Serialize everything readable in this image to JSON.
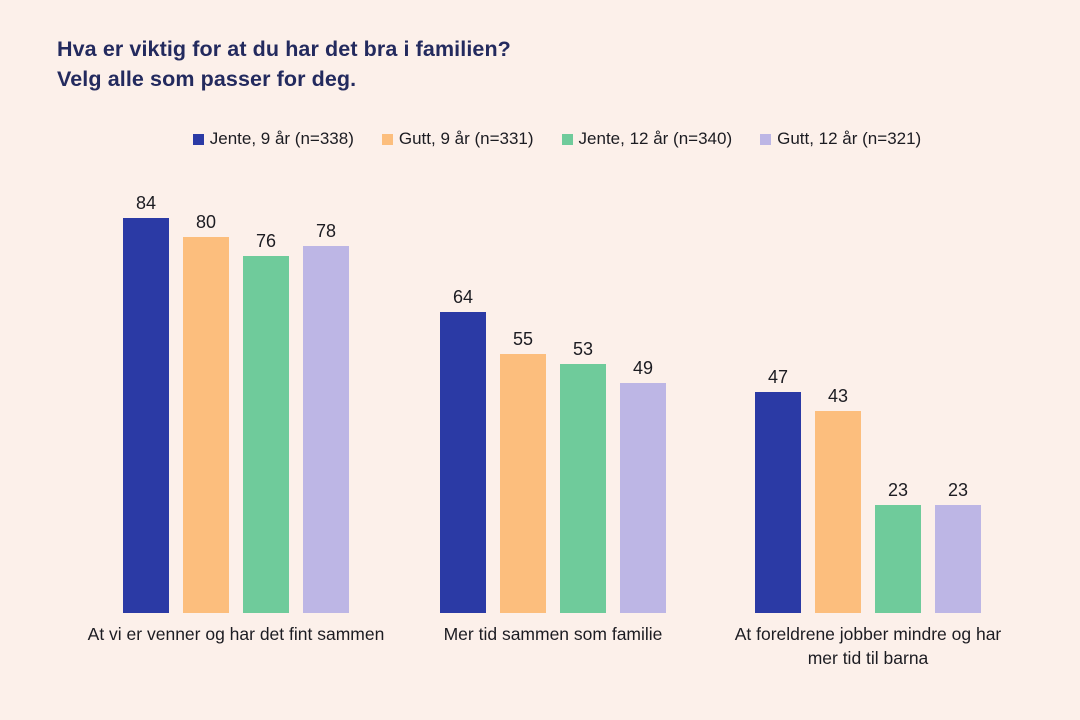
{
  "page": {
    "background_color": "#fcf0ea",
    "title_color": "#232a5e",
    "text_color": "#1c1c22"
  },
  "title": {
    "line1": "Hva er viktig for at du har det bra i familien?",
    "line2": "Velg alle som passer for deg."
  },
  "chart_data": {
    "type": "bar",
    "title": "Hva er viktig for at du har det bra i familien? Velg alle som passer for deg.",
    "categories": [
      "At vi er venner og har det fint sammen",
      "Mer tid sammen som familie",
      "At foreldrene jobber mindre og har mer tid til barna"
    ],
    "series": [
      {
        "name": "Jente, 9 år (n=338)",
        "color": "#2b3aa5",
        "values": [
          84,
          64,
          47
        ]
      },
      {
        "name": "Gutt, 9 år (n=331)",
        "color": "#fcbe7d",
        "values": [
          80,
          55,
          43
        ]
      },
      {
        "name": "Jente, 12 år (n=340)",
        "color": "#6fcb9b",
        "values": [
          76,
          53,
          23
        ]
      },
      {
        "name": "Gutt, 12 år (n=321)",
        "color": "#bdb6e5",
        "values": [
          78,
          49,
          23
        ]
      }
    ],
    "ylim": [
      0,
      90
    ],
    "value_labels": true,
    "legend_position": "top",
    "grid": false,
    "axes_visible": false,
    "xlabel": "",
    "ylabel": ""
  }
}
